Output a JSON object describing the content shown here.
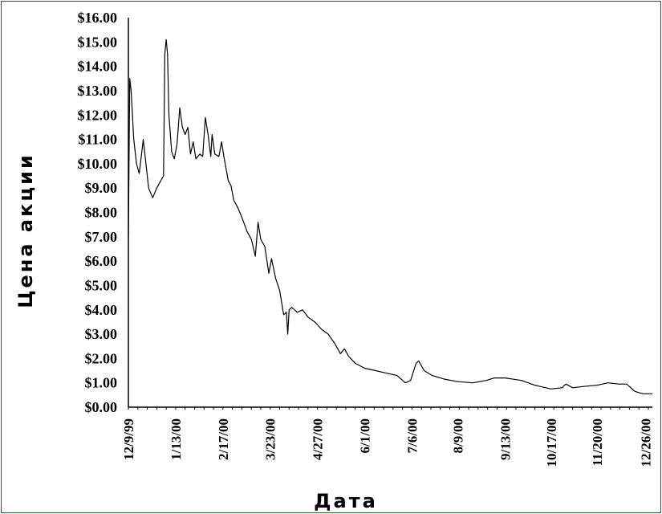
{
  "chart_data": {
    "type": "line",
    "title": "",
    "xlabel": "Дата",
    "ylabel": "Цена акции",
    "x_tick_labels": [
      "12/9/99",
      "1/13/00",
      "2/17/00",
      "3/23/00",
      "4/27/00",
      "6/1/00",
      "7/6/00",
      "8/9/00",
      "9/13/00",
      "10/17/00",
      "11/20/00",
      "12/26/00"
    ],
    "y_tick_labels": [
      "$0.00",
      "$1.00",
      "$2.00",
      "$3.00",
      "$4.00",
      "$5.00",
      "$6.00",
      "$7.00",
      "$8.00",
      "$9.00",
      "$10.00",
      "$11.00",
      "$12.00",
      "$13.00",
      "$14.00",
      "$15.00",
      "$16.00"
    ],
    "xlim": [
      "1999-12-09",
      "2000-12-31"
    ],
    "ylim": [
      0,
      16
    ],
    "grid": false,
    "legend": "none",
    "line_color": "#000000",
    "series": [
      {
        "points": [
          [
            "1999-12-09",
            7.0
          ],
          [
            "1999-12-10",
            13.5
          ],
          [
            "1999-12-11",
            13.0
          ],
          [
            "1999-12-13",
            11.0
          ],
          [
            "1999-12-15",
            10.0
          ],
          [
            "1999-12-17",
            9.6
          ],
          [
            "1999-12-19",
            10.5
          ],
          [
            "1999-12-20",
            11.0
          ],
          [
            "1999-12-22",
            10.0
          ],
          [
            "1999-12-24",
            9.0
          ],
          [
            "1999-12-27",
            8.6
          ],
          [
            "1999-12-30",
            9.0
          ],
          [
            "2000-01-02",
            9.3
          ],
          [
            "2000-01-04",
            9.5
          ],
          [
            "2000-01-05",
            14.5
          ],
          [
            "2000-01-06",
            15.1
          ],
          [
            "2000-01-07",
            14.5
          ],
          [
            "2000-01-08",
            12.0
          ],
          [
            "2000-01-10",
            10.5
          ],
          [
            "2000-01-12",
            10.2
          ],
          [
            "2000-01-14",
            10.8
          ],
          [
            "2000-01-16",
            12.3
          ],
          [
            "2000-01-18",
            11.5
          ],
          [
            "2000-01-20",
            11.2
          ],
          [
            "2000-01-22",
            11.5
          ],
          [
            "2000-01-24",
            10.4
          ],
          [
            "2000-01-26",
            10.9
          ],
          [
            "2000-01-28",
            10.2
          ],
          [
            "2000-01-31",
            10.4
          ],
          [
            "2000-02-02",
            10.3
          ],
          [
            "2000-02-04",
            11.9
          ],
          [
            "2000-02-06",
            11.2
          ],
          [
            "2000-02-08",
            10.3
          ],
          [
            "2000-02-09",
            11.2
          ],
          [
            "2000-02-11",
            10.4
          ],
          [
            "2000-02-14",
            10.3
          ],
          [
            "2000-02-16",
            10.9
          ],
          [
            "2000-02-18",
            10.2
          ],
          [
            "2000-02-21",
            9.3
          ],
          [
            "2000-02-23",
            9.1
          ],
          [
            "2000-02-25",
            8.5
          ],
          [
            "2000-02-28",
            8.2
          ],
          [
            "2000-03-02",
            7.8
          ],
          [
            "2000-03-06",
            7.2
          ],
          [
            "2000-03-09",
            6.9
          ],
          [
            "2000-03-12",
            6.2
          ],
          [
            "2000-03-14",
            7.6
          ],
          [
            "2000-03-16",
            6.9
          ],
          [
            "2000-03-19",
            6.6
          ],
          [
            "2000-03-22",
            5.5
          ],
          [
            "2000-03-24",
            6.1
          ],
          [
            "2000-03-27",
            5.3
          ],
          [
            "2000-03-30",
            4.8
          ],
          [
            "2000-04-02",
            3.8
          ],
          [
            "2000-04-04",
            3.9
          ],
          [
            "2000-04-05",
            3.0
          ],
          [
            "2000-04-06",
            4.0
          ],
          [
            "2000-04-08",
            4.1
          ],
          [
            "2000-04-12",
            3.9
          ],
          [
            "2000-04-16",
            4.0
          ],
          [
            "2000-04-20",
            3.7
          ],
          [
            "2000-04-25",
            3.5
          ],
          [
            "2000-04-30",
            3.2
          ],
          [
            "2000-05-05",
            3.0
          ],
          [
            "2000-05-10",
            2.6
          ],
          [
            "2000-05-14",
            2.2
          ],
          [
            "2000-05-17",
            2.4
          ],
          [
            "2000-05-20",
            2.1
          ],
          [
            "2000-05-25",
            1.8
          ],
          [
            "2000-06-01",
            1.6
          ],
          [
            "2000-06-09",
            1.5
          ],
          [
            "2000-06-17",
            1.4
          ],
          [
            "2000-06-25",
            1.3
          ],
          [
            "2000-07-01",
            1.0
          ],
          [
            "2000-07-05",
            1.1
          ],
          [
            "2000-07-09",
            1.8
          ],
          [
            "2000-07-11",
            1.9
          ],
          [
            "2000-07-15",
            1.5
          ],
          [
            "2000-07-21",
            1.3
          ],
          [
            "2000-07-30",
            1.15
          ],
          [
            "2000-08-09",
            1.05
          ],
          [
            "2000-08-20",
            1.0
          ],
          [
            "2000-08-30",
            1.1
          ],
          [
            "2000-09-05",
            1.2
          ],
          [
            "2000-09-13",
            1.2
          ],
          [
            "2000-09-25",
            1.1
          ],
          [
            "2000-10-05",
            0.9
          ],
          [
            "2000-10-17",
            0.75
          ],
          [
            "2000-10-25",
            0.8
          ],
          [
            "2000-10-28",
            0.95
          ],
          [
            "2000-11-02",
            0.8
          ],
          [
            "2000-11-10",
            0.85
          ],
          [
            "2000-11-20",
            0.9
          ],
          [
            "2000-11-28",
            1.0
          ],
          [
            "2000-12-06",
            0.95
          ],
          [
            "2000-12-12",
            0.95
          ],
          [
            "2000-12-18",
            0.65
          ],
          [
            "2000-12-24",
            0.55
          ],
          [
            "2000-12-31",
            0.55
          ]
        ]
      }
    ]
  }
}
